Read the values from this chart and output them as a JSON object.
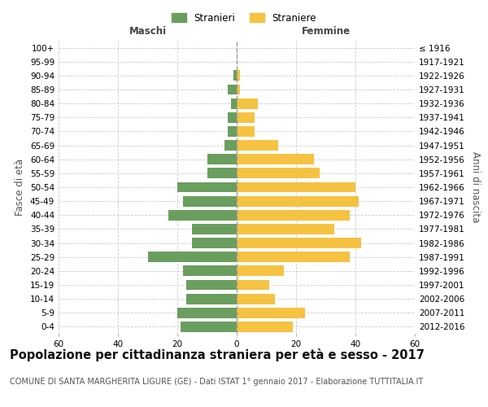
{
  "age_groups": [
    "100+",
    "95-99",
    "90-94",
    "85-89",
    "80-84",
    "75-79",
    "70-74",
    "65-69",
    "60-64",
    "55-59",
    "50-54",
    "45-49",
    "40-44",
    "35-39",
    "30-34",
    "25-29",
    "20-24",
    "15-19",
    "10-14",
    "5-9",
    "0-4"
  ],
  "birth_years": [
    "≤ 1916",
    "1917-1921",
    "1922-1926",
    "1927-1931",
    "1932-1936",
    "1937-1941",
    "1942-1946",
    "1947-1951",
    "1952-1956",
    "1957-1961",
    "1962-1966",
    "1967-1971",
    "1972-1976",
    "1977-1981",
    "1982-1986",
    "1987-1991",
    "1992-1996",
    "1997-2001",
    "2002-2006",
    "2007-2011",
    "2012-2016"
  ],
  "maschi": [
    0,
    0,
    1,
    3,
    2,
    3,
    3,
    4,
    10,
    10,
    20,
    18,
    23,
    15,
    15,
    30,
    18,
    17,
    17,
    20,
    19
  ],
  "femmine": [
    0,
    0,
    1,
    1,
    7,
    6,
    6,
    14,
    26,
    28,
    40,
    41,
    38,
    33,
    42,
    38,
    16,
    11,
    13,
    23,
    19
  ],
  "maschi_color": "#6a9e5e",
  "femmine_color": "#f5c242",
  "grid_color": "#cccccc",
  "title": "Popolazione per cittadinanza straniera per età e sesso - 2017",
  "subtitle": "COMUNE DI SANTA MARGHERITA LIGURE (GE) - Dati ISTAT 1° gennaio 2017 - Elaborazione TUTTITALIA.IT",
  "xlabel_left": "Maschi",
  "xlabel_right": "Femmine",
  "ylabel_left": "Fasce di età",
  "ylabel_right": "Anni di nascita",
  "legend_stranieri": "Stranieri",
  "legend_straniere": "Straniere",
  "xlim": 60,
  "title_fontsize": 10.5,
  "subtitle_fontsize": 7.0,
  "tick_fontsize": 7.5,
  "label_fontsize": 8.5
}
